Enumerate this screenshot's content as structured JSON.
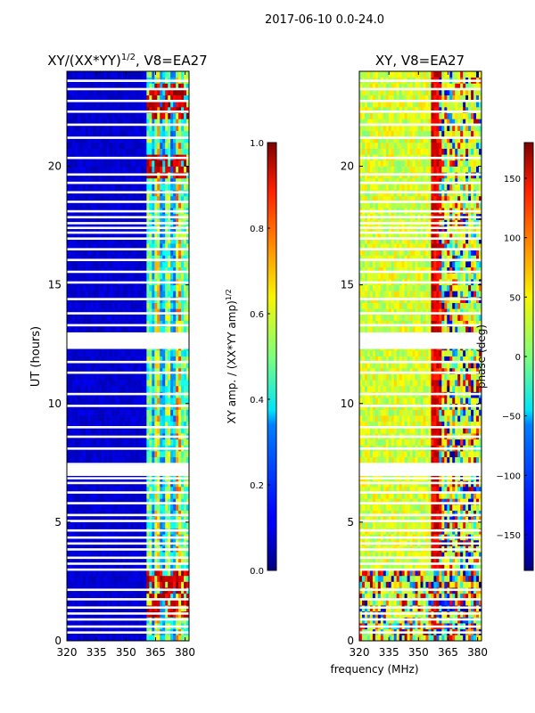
{
  "figure_title": "2017-06-10 0.0-24.0",
  "shared_xlabel": "frequency (MHz)",
  "chart_data": [
    {
      "type": "heatmap",
      "title": "XY/(XX*YY)^{1/2}, V8=EA27",
      "title_main": "XY/(XX*YY)",
      "title_exp": "1/2",
      "title_suffix": ", V8=EA27",
      "xlabel": "",
      "ylabel": "UT (hours)",
      "xlim": [
        320,
        382
      ],
      "ylim": [
        0,
        24
      ],
      "xticks": [
        320,
        335,
        350,
        365,
        380
      ],
      "yticks": [
        0,
        5,
        10,
        15,
        20
      ],
      "colormap": "jet",
      "colorbar": {
        "label": "XY amp. / (XX*YY amp)^{1/2}",
        "label_main": "XY amp. / (XX*YY amp)",
        "label_exp": "1/2",
        "range": [
          0.0,
          1.0
        ],
        "ticks": [
          "0.0",
          "0.2",
          "0.4",
          "0.6",
          "0.8",
          "1.0"
        ]
      },
      "features": {
        "background_level": 0.05,
        "active_band_mhz": [
          360,
          382
        ],
        "active_columns_mhz": [
          362,
          366,
          371,
          376,
          380
        ],
        "active_column_levels": [
          0.55,
          0.7,
          0.6,
          0.75,
          0.55
        ],
        "high_value_hours": [
          1.5,
          2.5,
          20.0,
          22.5,
          23.0
        ]
      }
    },
    {
      "type": "heatmap",
      "title": "XY, V8=EA27",
      "xlabel": "",
      "ylabel": "",
      "xlim": [
        320,
        382
      ],
      "ylim": [
        0,
        24
      ],
      "xticks": [
        320,
        335,
        350,
        365,
        380
      ],
      "yticks": [
        0,
        5,
        10,
        15,
        20
      ],
      "colormap": "jet",
      "colorbar": {
        "label": "phase (deg)",
        "range": [
          -180,
          180
        ],
        "ticks": [
          "−150",
          "−100",
          "−50",
          "0",
          "50",
          "100",
          "150"
        ]
      },
      "features": {
        "dominant_phase_deg": [
          0,
          60
        ],
        "red_band_mhz": [
          357,
          362
        ],
        "variable_region_mhz": [
          360,
          382
        ],
        "noisy_hours": [
          0,
          3
        ]
      }
    }
  ],
  "blank_rows_hours": [
    0.35,
    0.6,
    0.9,
    1.15,
    1.4,
    1.75,
    2.15,
    3.0,
    3.25,
    3.5,
    3.85,
    4.1,
    4.35,
    4.65,
    5.05,
    5.3,
    5.8,
    6.25,
    6.65,
    6.85,
    7.05,
    7.25,
    7.45,
    8.1,
    8.6,
    9.0,
    9.9,
    10.4,
    11.3,
    11.75,
    12.35,
    12.55,
    12.75,
    12.95,
    13.3,
    13.8,
    14.4,
    15.1,
    15.55,
    16.05,
    16.5,
    16.95,
    17.2,
    17.4,
    17.6,
    17.85,
    18.1,
    18.5,
    18.9,
    19.3,
    19.65,
    20.35,
    21.2,
    21.75,
    22.3,
    22.75,
    23.25,
    23.6
  ]
}
